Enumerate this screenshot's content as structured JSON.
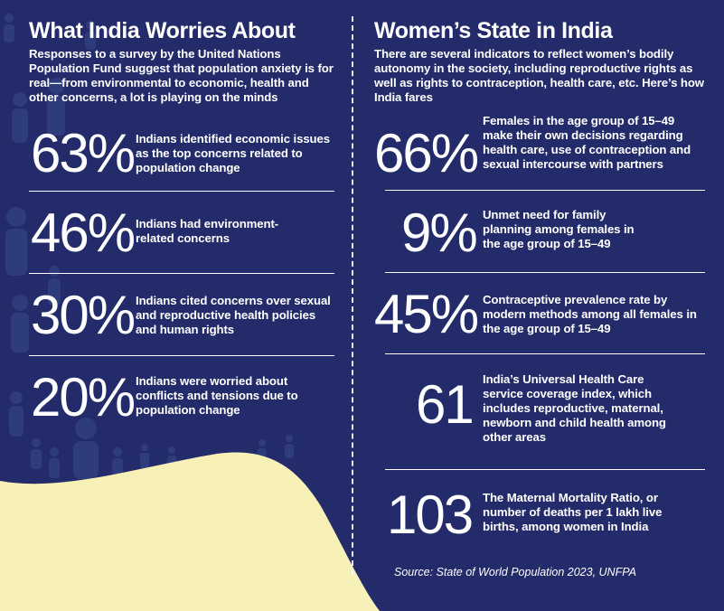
{
  "colors": {
    "background": "#232b6a",
    "cream": "#f7f0b7",
    "text": "#ffffff"
  },
  "left": {
    "title": "What India Worries About",
    "intro": "Responses to a survey by the United Nations Population Fund suggest that population anxiety is for real—from environmental to economic, health and other concerns, a lot is playing on the minds",
    "stats": [
      {
        "value": "63%",
        "text": "Indians identified economic issues as the top concerns related to population change"
      },
      {
        "value": "46%",
        "text": "Indians had environment-related concerns"
      },
      {
        "value": "30%",
        "text": "Indians cited concerns over sexual and reproductive health policies and human rights"
      },
      {
        "value": "20%",
        "text": "Indians were worried about conflicts and tensions due to population change"
      }
    ]
  },
  "right": {
    "title": "Women’s State in India",
    "intro": "There are several indicators to reflect women’s bodily autonomy in the society, including reproductive rights as well as rights to contraception, health care, etc. Here’s how India fares",
    "stats": [
      {
        "value": "66%",
        "text": "Females in the age group of 15–49 make their own decisions regarding health care, use of contraception and sexual intercourse with partners"
      },
      {
        "value": "9%",
        "text": "Unmet need for family planning among females in the age group of 15–49"
      },
      {
        "value": "45%",
        "text": "Contraceptive prevalence rate by modern methods among all females in the age group of 15–49"
      },
      {
        "value": "61",
        "text": "India’s Universal Health Care service coverage index, which includes reproductive, maternal, newborn and child health among other areas"
      },
      {
        "value": "103",
        "text": "The Maternal Mortality Ratio, or number of deaths per 1 lakh live births, among women in India"
      }
    ]
  },
  "source": "Source: State of World Population 2023, UNFPA"
}
